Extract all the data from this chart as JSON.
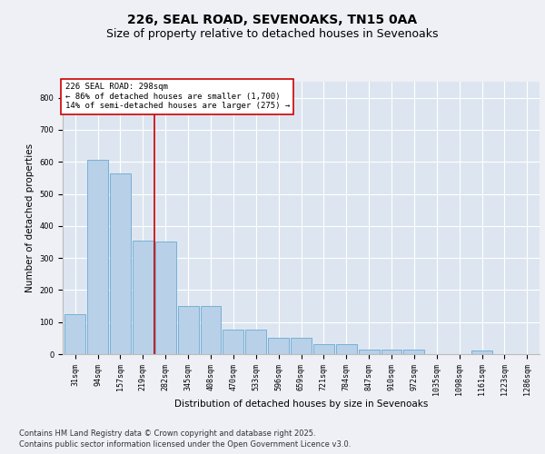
{
  "title": "226, SEAL ROAD, SEVENOAKS, TN15 0AA",
  "subtitle": "Size of property relative to detached houses in Sevenoaks",
  "xlabel": "Distribution of detached houses by size in Sevenoaks",
  "ylabel": "Number of detached properties",
  "categories": [
    "31sqm",
    "94sqm",
    "157sqm",
    "219sqm",
    "282sqm",
    "345sqm",
    "408sqm",
    "470sqm",
    "533sqm",
    "596sqm",
    "659sqm",
    "721sqm",
    "784sqm",
    "847sqm",
    "910sqm",
    "972sqm",
    "1035sqm",
    "1098sqm",
    "1161sqm",
    "1223sqm",
    "1286sqm"
  ],
  "values": [
    125,
    605,
    565,
    355,
    350,
    150,
    150,
    76,
    76,
    50,
    50,
    30,
    30,
    15,
    15,
    15,
    0,
    0,
    10,
    0,
    0
  ],
  "bar_color": "#b8d0e8",
  "bar_edge_color": "#6aaad4",
  "plot_bg_color": "#dde6f0",
  "fig_bg_color": "#eef0f5",
  "grid_color": "#ffffff",
  "vline_color": "#cc0000",
  "vline_x": 3.5,
  "annotation_text": "226 SEAL ROAD: 298sqm\n← 86% of detached houses are smaller (1,700)\n14% of semi-detached houses are larger (275) →",
  "annotation_box_facecolor": "#ffffff",
  "annotation_box_edgecolor": "#cc0000",
  "ylim_max": 850,
  "yticks": [
    0,
    100,
    200,
    300,
    400,
    500,
    600,
    700,
    800
  ],
  "footer_line1": "Contains HM Land Registry data © Crown copyright and database right 2025.",
  "footer_line2": "Contains public sector information licensed under the Open Government Licence v3.0.",
  "title_fontsize": 10,
  "subtitle_fontsize": 9,
  "axis_label_fontsize": 7.5,
  "tick_fontsize": 6,
  "annotation_fontsize": 6.5,
  "footer_fontsize": 6
}
